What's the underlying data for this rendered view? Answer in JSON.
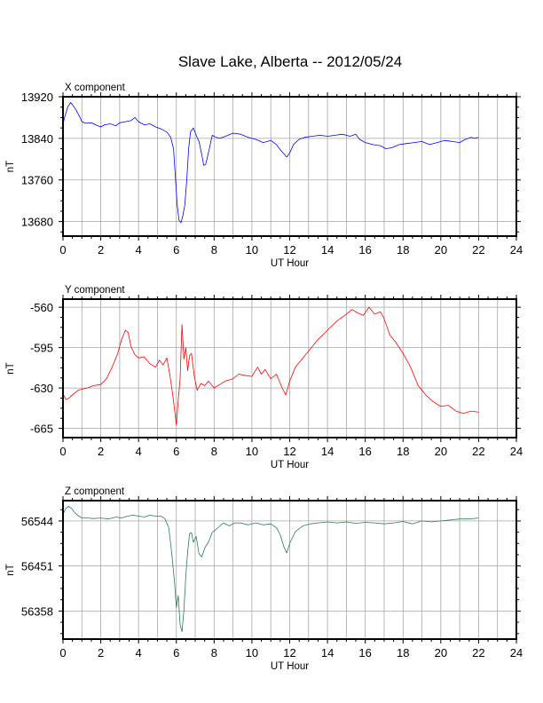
{
  "title": "Slave Lake, Alberta -- 2012/05/24",
  "chart_data": [
    {
      "type": "line",
      "panel_label": "X component",
      "xlabel": "UT Hour",
      "ylabel": "nT",
      "xlim": [
        0,
        24
      ],
      "ylim": [
        13652,
        13920
      ],
      "x_ticks": [
        0,
        2,
        4,
        6,
        8,
        10,
        12,
        14,
        16,
        18,
        20,
        22,
        24
      ],
      "y_ticks": [
        13920,
        13840,
        13760,
        13680
      ],
      "grid": true,
      "series": [
        {
          "color": "#0000ff",
          "x": [
            0,
            0.1,
            0.25,
            0.4,
            0.5,
            0.7,
            0.9,
            1.0,
            1.2,
            1.5,
            1.8,
            2.0,
            2.2,
            2.5,
            2.8,
            3.0,
            3.3,
            3.6,
            3.8,
            4.0,
            4.3,
            4.6,
            4.9,
            5.2,
            5.5,
            5.7,
            5.85,
            5.95,
            6.05,
            6.15,
            6.25,
            6.35,
            6.45,
            6.55,
            6.65,
            6.75,
            6.9,
            7.05,
            7.2,
            7.35,
            7.45,
            7.55,
            7.7,
            7.9,
            8.1,
            8.3,
            8.6,
            9.0,
            9.4,
            9.8,
            10.2,
            10.6,
            11.0,
            11.3,
            11.5,
            11.7,
            11.85,
            12.0,
            12.2,
            12.5,
            12.8,
            13.2,
            13.6,
            14.0,
            14.4,
            14.8,
            15.2,
            15.5,
            15.7,
            16.0,
            16.4,
            16.8,
            17.1,
            17.4,
            17.8,
            18.2,
            18.6,
            19.0,
            19.4,
            19.8,
            20.2,
            20.6,
            21.0,
            21.3,
            21.6,
            21.8,
            22.0
          ],
          "values": [
            13868,
            13882,
            13900,
            13909,
            13905,
            13894,
            13880,
            13872,
            13869,
            13870,
            13865,
            13862,
            13866,
            13868,
            13864,
            13870,
            13872,
            13874,
            13880,
            13872,
            13866,
            13868,
            13862,
            13858,
            13852,
            13842,
            13820,
            13765,
            13710,
            13682,
            13678,
            13692,
            13712,
            13760,
            13820,
            13852,
            13860,
            13846,
            13834,
            13808,
            13788,
            13790,
            13812,
            13846,
            13842,
            13840,
            13844,
            13850,
            13848,
            13842,
            13838,
            13832,
            13836,
            13828,
            13818,
            13810,
            13804,
            13812,
            13828,
            13838,
            13842,
            13844,
            13846,
            13844,
            13846,
            13848,
            13844,
            13848,
            13838,
            13832,
            13828,
            13826,
            13820,
            13822,
            13828,
            13830,
            13832,
            13834,
            13828,
            13832,
            13836,
            13834,
            13832,
            13838,
            13842,
            13840,
            13842
          ]
        }
      ]
    },
    {
      "type": "line",
      "panel_label": "Y component",
      "xlabel": "UT Hour",
      "ylabel": "nT",
      "xlim": [
        0,
        24
      ],
      "ylim": [
        -673,
        -553
      ],
      "x_ticks": [
        0,
        2,
        4,
        6,
        8,
        10,
        12,
        14,
        16,
        18,
        20,
        22,
        24
      ],
      "y_ticks": [
        -560,
        -595,
        -630,
        -665
      ],
      "grid": true,
      "series": [
        {
          "color": "#ff0000",
          "x": [
            0,
            0.15,
            0.3,
            0.5,
            0.8,
            1.0,
            1.3,
            1.6,
            2.0,
            2.3,
            2.6,
            2.9,
            3.1,
            3.3,
            3.45,
            3.6,
            3.8,
            4.0,
            4.3,
            4.6,
            4.9,
            5.1,
            5.3,
            5.5,
            5.65,
            5.8,
            5.9,
            6.0,
            6.1,
            6.2,
            6.3,
            6.4,
            6.5,
            6.6,
            6.7,
            6.8,
            6.95,
            7.1,
            7.3,
            7.5,
            7.7,
            8.0,
            8.3,
            8.6,
            9.0,
            9.3,
            9.6,
            10.0,
            10.3,
            10.5,
            10.7,
            11.0,
            11.3,
            11.6,
            11.8,
            12.0,
            12.3,
            12.6,
            13.0,
            13.5,
            14.0,
            14.5,
            15.0,
            15.3,
            15.6,
            15.9,
            16.2,
            16.5,
            16.8,
            17.0,
            17.3,
            17.6,
            18.0,
            18.4,
            18.8,
            19.2,
            19.6,
            20.0,
            20.4,
            20.8,
            21.2,
            21.6,
            22.0
          ],
          "values": [
            -635,
            -640,
            -639,
            -636,
            -632,
            -631,
            -630,
            -628,
            -627,
            -622,
            -612,
            -600,
            -588,
            -580,
            -582,
            -594,
            -601,
            -604,
            -603,
            -609,
            -612,
            -606,
            -610,
            -604,
            -618,
            -635,
            -648,
            -662,
            -640,
            -622,
            -575,
            -605,
            -595,
            -615,
            -602,
            -600,
            -620,
            -632,
            -626,
            -628,
            -624,
            -630,
            -627,
            -624,
            -622,
            -618,
            -619,
            -620,
            -612,
            -618,
            -614,
            -622,
            -618,
            -630,
            -636,
            -624,
            -612,
            -606,
            -598,
            -588,
            -580,
            -572,
            -566,
            -562,
            -565,
            -567,
            -560,
            -566,
            -564,
            -570,
            -584,
            -590,
            -600,
            -612,
            -628,
            -636,
            -642,
            -646,
            -645,
            -650,
            -652,
            -650,
            -651
          ]
        }
      ]
    },
    {
      "type": "line",
      "panel_label": "Z component",
      "xlabel": "UT Hour",
      "ylabel": "nT",
      "xlim": [
        0,
        24
      ],
      "ylim": [
        56300,
        56586
      ],
      "x_ticks": [
        0,
        2,
        4,
        6,
        8,
        10,
        12,
        14,
        16,
        18,
        20,
        22,
        24
      ],
      "y_ticks": [
        56544,
        56451,
        56358
      ],
      "grid": true,
      "series": [
        {
          "color": "#2e7d4f",
          "x": [
            0,
            0.15,
            0.3,
            0.45,
            0.6,
            0.8,
            1.0,
            1.3,
            1.6,
            2.0,
            2.4,
            2.8,
            3.1,
            3.4,
            3.7,
            4.0,
            4.3,
            4.6,
            4.9,
            5.2,
            5.4,
            5.6,
            5.75,
            5.9,
            6.0,
            6.1,
            6.2,
            6.3,
            6.4,
            6.5,
            6.6,
            6.7,
            6.8,
            6.9,
            7.05,
            7.2,
            7.35,
            7.5,
            7.7,
            7.9,
            8.2,
            8.5,
            8.8,
            9.1,
            9.4,
            9.8,
            10.2,
            10.6,
            11.0,
            11.3,
            11.5,
            11.7,
            11.85,
            12.0,
            12.3,
            12.7,
            13.1,
            13.5,
            14.0,
            14.5,
            15.0,
            15.5,
            16.0,
            16.5,
            17.0,
            17.5,
            18.0,
            18.5,
            19.0,
            19.5,
            20.0,
            20.5,
            21.0,
            21.5,
            22.0
          ],
          "values": [
            56558,
            56570,
            56574,
            56570,
            56562,
            56555,
            56550,
            56550,
            56549,
            56550,
            56548,
            56552,
            56550,
            56554,
            56556,
            56554,
            56552,
            56556,
            56554,
            56554,
            56548,
            56530,
            56480,
            56420,
            56365,
            56390,
            56330,
            56315,
            56360,
            56430,
            56480,
            56518,
            56520,
            56500,
            56512,
            56476,
            56470,
            56488,
            56500,
            56520,
            56530,
            56540,
            56534,
            56540,
            56540,
            56536,
            56540,
            56536,
            56538,
            56530,
            56515,
            56490,
            56478,
            56498,
            56522,
            56534,
            56538,
            56540,
            56542,
            56540,
            56542,
            56539,
            56541,
            56540,
            56538,
            56540,
            56543,
            56538,
            56544,
            56542,
            56544,
            56546,
            56548,
            56548,
            56550
          ]
        }
      ]
    }
  ]
}
